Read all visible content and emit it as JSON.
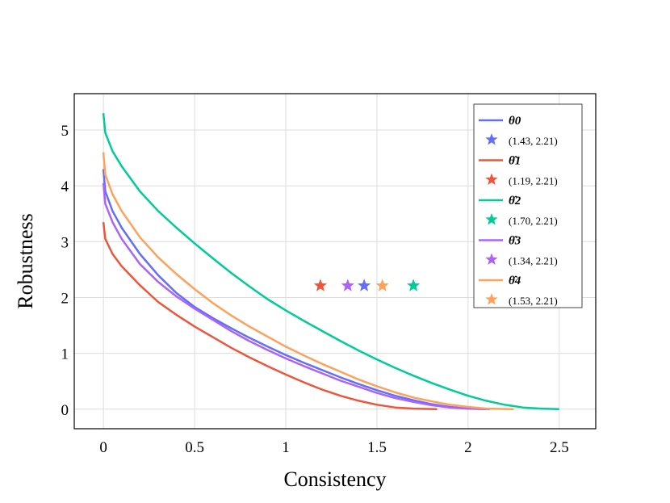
{
  "chart_data": {
    "type": "line",
    "title": "",
    "xlabel": "Consistency",
    "ylabel": "Robustness",
    "xlim": [
      -0.16,
      2.7
    ],
    "ylim": [
      -0.35,
      5.65
    ],
    "xticks": [
      0,
      0.5,
      1,
      1.5,
      2,
      2.5
    ],
    "xtick_labels": [
      "0",
      "0.5",
      "1",
      "1.5",
      "2",
      "2.5"
    ],
    "yticks": [
      0,
      1,
      2,
      3,
      4,
      5
    ],
    "ytick_labels": [
      "0",
      "1",
      "2",
      "3",
      "4",
      "5"
    ],
    "grid": true,
    "legend_position": "top-right",
    "series": [
      {
        "name": "θ0",
        "color": "#636efa",
        "points": [
          [
            0,
            4.3
          ],
          [
            0.01,
            3.9
          ],
          [
            0.05,
            3.55
          ],
          [
            0.1,
            3.25
          ],
          [
            0.2,
            2.78
          ],
          [
            0.3,
            2.4
          ],
          [
            0.4,
            2.08
          ],
          [
            0.5,
            1.83
          ],
          [
            0.6,
            1.63
          ],
          [
            0.7,
            1.45
          ],
          [
            0.8,
            1.28
          ],
          [
            0.9,
            1.12
          ],
          [
            1.0,
            0.97
          ],
          [
            1.1,
            0.83
          ],
          [
            1.2,
            0.7
          ],
          [
            1.3,
            0.57
          ],
          [
            1.4,
            0.45
          ],
          [
            1.5,
            0.34
          ],
          [
            1.6,
            0.24
          ],
          [
            1.7,
            0.16
          ],
          [
            1.8,
            0.09
          ],
          [
            1.9,
            0.04
          ],
          [
            2.0,
            0.01
          ],
          [
            2.1,
            0.0
          ]
        ],
        "star": [
          1.43,
          2.21
        ],
        "star_label": "(1.43, 2.21)"
      },
      {
        "name": "θ̂1",
        "color": "#ef553b",
        "points": [
          [
            0,
            3.35
          ],
          [
            0.01,
            3.05
          ],
          [
            0.05,
            2.78
          ],
          [
            0.1,
            2.56
          ],
          [
            0.2,
            2.22
          ],
          [
            0.3,
            1.92
          ],
          [
            0.4,
            1.69
          ],
          [
            0.5,
            1.48
          ],
          [
            0.6,
            1.29
          ],
          [
            0.7,
            1.1
          ],
          [
            0.8,
            0.93
          ],
          [
            0.9,
            0.77
          ],
          [
            1.0,
            0.62
          ],
          [
            1.1,
            0.48
          ],
          [
            1.2,
            0.35
          ],
          [
            1.3,
            0.24
          ],
          [
            1.4,
            0.15
          ],
          [
            1.5,
            0.08
          ],
          [
            1.6,
            0.03
          ],
          [
            1.7,
            0.01
          ],
          [
            1.83,
            0.0
          ]
        ],
        "star": [
          1.19,
          2.21
        ],
        "star_label": "(1.19, 2.21)"
      },
      {
        "name": "θ̂2",
        "color": "#00cc96",
        "points": [
          [
            0,
            5.3
          ],
          [
            0.01,
            4.95
          ],
          [
            0.05,
            4.62
          ],
          [
            0.1,
            4.35
          ],
          [
            0.2,
            3.9
          ],
          [
            0.3,
            3.55
          ],
          [
            0.4,
            3.25
          ],
          [
            0.5,
            2.97
          ],
          [
            0.6,
            2.7
          ],
          [
            0.7,
            2.44
          ],
          [
            0.8,
            2.2
          ],
          [
            0.9,
            1.97
          ],
          [
            1.0,
            1.77
          ],
          [
            1.1,
            1.58
          ],
          [
            1.2,
            1.4
          ],
          [
            1.3,
            1.22
          ],
          [
            1.4,
            1.05
          ],
          [
            1.5,
            0.89
          ],
          [
            1.6,
            0.74
          ],
          [
            1.7,
            0.6
          ],
          [
            1.8,
            0.47
          ],
          [
            1.9,
            0.35
          ],
          [
            2.0,
            0.24
          ],
          [
            2.1,
            0.15
          ],
          [
            2.2,
            0.08
          ],
          [
            2.3,
            0.03
          ],
          [
            2.4,
            0.01
          ],
          [
            2.5,
            0.0
          ]
        ],
        "star": [
          1.7,
          2.21
        ],
        "star_label": "(1.70, 2.21)"
      },
      {
        "name": "θ̂3",
        "color": "#ab63fa",
        "points": [
          [
            0,
            4.05
          ],
          [
            0.01,
            3.68
          ],
          [
            0.05,
            3.35
          ],
          [
            0.1,
            3.05
          ],
          [
            0.2,
            2.6
          ],
          [
            0.3,
            2.28
          ],
          [
            0.4,
            2.02
          ],
          [
            0.5,
            1.8
          ],
          [
            0.6,
            1.6
          ],
          [
            0.7,
            1.4
          ],
          [
            0.8,
            1.22
          ],
          [
            0.9,
            1.06
          ],
          [
            1.0,
            0.91
          ],
          [
            1.1,
            0.77
          ],
          [
            1.2,
            0.64
          ],
          [
            1.3,
            0.51
          ],
          [
            1.4,
            0.4
          ],
          [
            1.5,
            0.29
          ],
          [
            1.6,
            0.2
          ],
          [
            1.7,
            0.13
          ],
          [
            1.8,
            0.07
          ],
          [
            1.9,
            0.03
          ],
          [
            2.0,
            0.01
          ],
          [
            2.12,
            0.0
          ]
        ],
        "star": [
          1.34,
          2.21
        ],
        "star_label": "(1.34, 2.21)"
      },
      {
        "name": "θ̂4",
        "color": "#ffa15a",
        "points": [
          [
            0,
            4.6
          ],
          [
            0.01,
            4.2
          ],
          [
            0.05,
            3.85
          ],
          [
            0.1,
            3.55
          ],
          [
            0.2,
            3.08
          ],
          [
            0.3,
            2.72
          ],
          [
            0.4,
            2.42
          ],
          [
            0.5,
            2.15
          ],
          [
            0.6,
            1.9
          ],
          [
            0.7,
            1.68
          ],
          [
            0.8,
            1.48
          ],
          [
            0.9,
            1.3
          ],
          [
            1.0,
            1.12
          ],
          [
            1.1,
            0.96
          ],
          [
            1.2,
            0.81
          ],
          [
            1.3,
            0.67
          ],
          [
            1.4,
            0.53
          ],
          [
            1.5,
            0.41
          ],
          [
            1.6,
            0.3
          ],
          [
            1.7,
            0.21
          ],
          [
            1.8,
            0.14
          ],
          [
            1.9,
            0.08
          ],
          [
            2.0,
            0.04
          ],
          [
            2.1,
            0.01
          ],
          [
            2.25,
            0.0
          ]
        ],
        "star": [
          1.53,
          2.21
        ],
        "star_label": "(1.53, 2.21)"
      }
    ]
  }
}
